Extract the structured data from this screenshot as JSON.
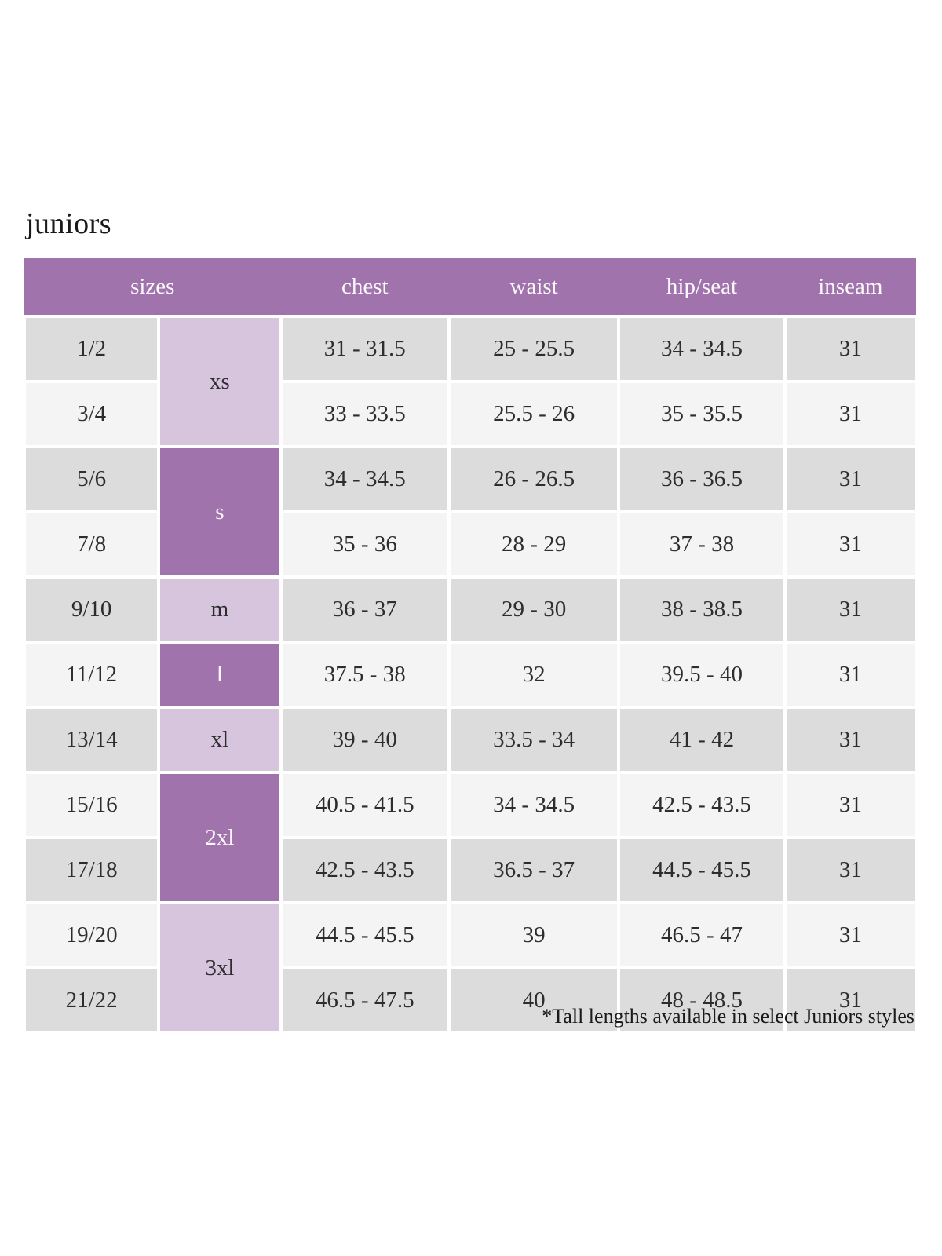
{
  "page": {
    "title": "juniors",
    "footnote": "*Tall lengths available in select Juniors styles"
  },
  "table": {
    "headers": [
      "sizes",
      "chest",
      "waist",
      "hip/seat",
      "inseam"
    ],
    "size_groups": [
      {
        "label": "xs",
        "rows": 2,
        "variant": "light"
      },
      {
        "label": "s",
        "rows": 2,
        "variant": "dark"
      },
      {
        "label": "m",
        "rows": 1,
        "variant": "light"
      },
      {
        "label": "l",
        "rows": 1,
        "variant": "dark"
      },
      {
        "label": "xl",
        "rows": 1,
        "variant": "light"
      },
      {
        "label": "2xl",
        "rows": 2,
        "variant": "dark"
      },
      {
        "label": "3xl",
        "rows": 2,
        "variant": "light"
      }
    ],
    "rows": [
      {
        "size": "1/2",
        "chest": "31 - 31.5",
        "waist": "25 - 25.5",
        "hip_seat": "34 - 34.5",
        "inseam": "31"
      },
      {
        "size": "3/4",
        "chest": "33 - 33.5",
        "waist": "25.5 - 26",
        "hip_seat": "35 - 35.5",
        "inseam": "31"
      },
      {
        "size": "5/6",
        "chest": "34 - 34.5",
        "waist": "26 - 26.5",
        "hip_seat": "36 - 36.5",
        "inseam": "31"
      },
      {
        "size": "7/8",
        "chest": "35 - 36",
        "waist": "28 - 29",
        "hip_seat": "37 - 38",
        "inseam": "31"
      },
      {
        "size": "9/10",
        "chest": "36 - 37",
        "waist": "29 - 30",
        "hip_seat": "38 - 38.5",
        "inseam": "31"
      },
      {
        "size": "11/12",
        "chest": "37.5 - 38",
        "waist": "32",
        "hip_seat": "39.5 - 40",
        "inseam": "31"
      },
      {
        "size": "13/14",
        "chest": "39 - 40",
        "waist": "33.5 - 34",
        "hip_seat": "41 - 42",
        "inseam": "31"
      },
      {
        "size": "15/16",
        "chest": "40.5 - 41.5",
        "waist": "34 - 34.5",
        "hip_seat": "42.5 - 43.5",
        "inseam": "31"
      },
      {
        "size": "17/18",
        "chest": "42.5 - 43.5",
        "waist": "36.5 - 37",
        "hip_seat": "44.5 - 45.5",
        "inseam": "31"
      },
      {
        "size": "19/20",
        "chest": "44.5 - 45.5",
        "waist": "39",
        "hip_seat": "46.5 - 47",
        "inseam": "31"
      },
      {
        "size": "21/22",
        "chest": "46.5 - 47.5",
        "waist": "40",
        "hip_seat": "48 - 48.5",
        "inseam": "31"
      }
    ]
  },
  "colors": {
    "header_bg": "#a173ac",
    "letter_light_bg": "#d6c5dc",
    "row_gray": "#dcdcdc",
    "row_light": "#f4f4f4",
    "header_text": "#fbf8fc",
    "cell_text": "#2d2d2d"
  }
}
